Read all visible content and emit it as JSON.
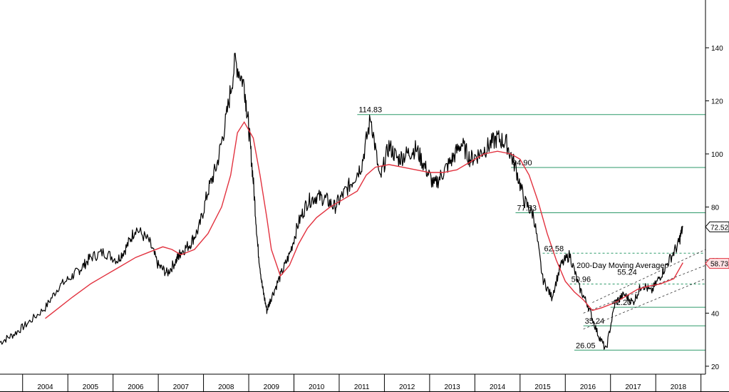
{
  "chart_data": {
    "type": "line",
    "title": "",
    "xlabel": "",
    "ylabel": "",
    "ylim": [
      17,
      158
    ],
    "xlim": [
      2003.0,
      2018.6
    ],
    "grid": false,
    "x_ticks": [
      "2004",
      "2005",
      "2006",
      "2007",
      "2008",
      "2009",
      "2010",
      "2011",
      "2012",
      "2013",
      "2014",
      "2015",
      "2016",
      "2017",
      "2018"
    ],
    "y_ticks": [
      20,
      40,
      60,
      80,
      100,
      120,
      140
    ],
    "y_tick_labels": [
      "20",
      "40",
      "60",
      "80",
      "100",
      "120",
      "140"
    ],
    "series": [
      {
        "name": "",
        "color": "#000000",
        "x": [
          2003.0,
          2003.3,
          2003.6,
          2004.0,
          2004.3,
          2004.6,
          2004.8,
          2005.0,
          2005.3,
          2005.6,
          2005.8,
          2006.0,
          2006.3,
          2006.5,
          2006.7,
          2006.9,
          2007.0,
          2007.2,
          2007.4,
          2007.6,
          2007.8,
          2008.0,
          2008.2,
          2008.4,
          2008.5,
          2008.6,
          2008.7,
          2008.8,
          2008.9,
          2009.0,
          2009.2,
          2009.4,
          2009.6,
          2009.8,
          2010.0,
          2010.2,
          2010.4,
          2010.6,
          2010.8,
          2011.0,
          2011.2,
          2011.4,
          2011.6,
          2011.8,
          2012.0,
          2012.2,
          2012.4,
          2012.6,
          2012.8,
          2013.0,
          2013.2,
          2013.4,
          2013.6,
          2013.8,
          2014.0,
          2014.2,
          2014.4,
          2014.6,
          2014.8,
          2015.0,
          2015.2,
          2015.4,
          2015.6,
          2015.8,
          2016.0,
          2016.2,
          2016.4,
          2016.6,
          2016.8,
          2017.0,
          2017.2,
          2017.4,
          2017.6,
          2017.8,
          2018.0,
          2018.1
        ],
        "values": [
          29,
          32,
          36,
          42,
          50,
          54,
          57,
          61,
          63,
          60,
          65,
          72,
          67,
          58,
          55,
          60,
          63,
          66,
          72,
          86,
          96,
          113,
          135,
          126,
          110,
          90,
          65,
          50,
          41,
          46,
          54,
          62,
          74,
          82,
          84,
          83,
          80,
          85,
          90,
          96,
          114,
          90,
          103,
          98,
          100,
          102,
          95,
          88,
          93,
          98,
          104,
          98,
          100,
          103,
          106,
          104,
          95,
          82,
          77,
          53,
          46,
          58,
          62,
          50,
          43,
          33,
          26,
          44,
          47,
          44,
          51,
          48,
          54,
          60,
          66,
          72.52
        ]
      },
      {
        "name": "200-Day Moving Average",
        "color": "#e2323f",
        "x": [
          2004.0,
          2004.3,
          2004.6,
          2005.0,
          2005.3,
          2005.6,
          2006.0,
          2006.3,
          2006.6,
          2006.8,
          2007.0,
          2007.3,
          2007.6,
          2007.9,
          2008.1,
          2008.25,
          2008.4,
          2008.6,
          2008.75,
          2008.9,
          2009.0,
          2009.2,
          2009.4,
          2009.6,
          2009.8,
          2010.0,
          2010.3,
          2010.6,
          2010.9,
          2011.1,
          2011.3,
          2011.6,
          2011.9,
          2012.2,
          2012.5,
          2012.8,
          2013.1,
          2013.4,
          2013.7,
          2014.0,
          2014.3,
          2014.5,
          2014.7,
          2014.9,
          2015.1,
          2015.3,
          2015.5,
          2015.7,
          2015.9,
          2016.1,
          2016.3,
          2016.6,
          2016.9,
          2017.1,
          2017.3,
          2017.6,
          2017.9,
          2018.1
        ],
        "values": [
          38,
          42,
          46,
          51,
          54,
          57,
          61,
          63,
          65,
          64,
          62,
          64,
          70,
          80,
          92,
          108,
          112,
          106,
          92,
          76,
          64,
          54,
          58,
          66,
          72,
          76,
          80,
          83,
          86,
          92,
          95,
          96,
          95,
          94,
          93,
          93,
          94,
          97,
          100,
          101,
          100,
          98,
          92,
          82,
          70,
          60,
          52,
          48,
          45,
          41,
          42,
          44,
          47,
          49,
          50,
          51,
          53,
          59
        ]
      }
    ],
    "right_labels": [
      {
        "value": 72.52,
        "text": "72.52",
        "color": "#000000"
      },
      {
        "value": 58.73,
        "text": "58.73",
        "color": "#e2323f"
      }
    ],
    "levels": [
      {
        "value": 114.83,
        "text": "114.83",
        "style": "solid"
      },
      {
        "value": 94.9,
        "text": "94.90",
        "style": "solid"
      },
      {
        "value": 77.83,
        "text": "77.83",
        "style": "solid"
      },
      {
        "value": 62.58,
        "text": "62.58",
        "style": "dashed"
      },
      {
        "value": 50.96,
        "text": "50.96",
        "style": "dashed"
      },
      {
        "value": 42.2,
        "text": "42.20",
        "style": "solid"
      },
      {
        "value": 35.24,
        "text": "35.24",
        "style": "solid"
      },
      {
        "value": 26.05,
        "text": "26.05",
        "style": "solid"
      }
    ],
    "annotations": [
      {
        "text": "200-Day Moving Average",
        "color": "#e2323f"
      },
      {
        "text": "55.24",
        "color": "#000000"
      }
    ],
    "legend": "none"
  }
}
